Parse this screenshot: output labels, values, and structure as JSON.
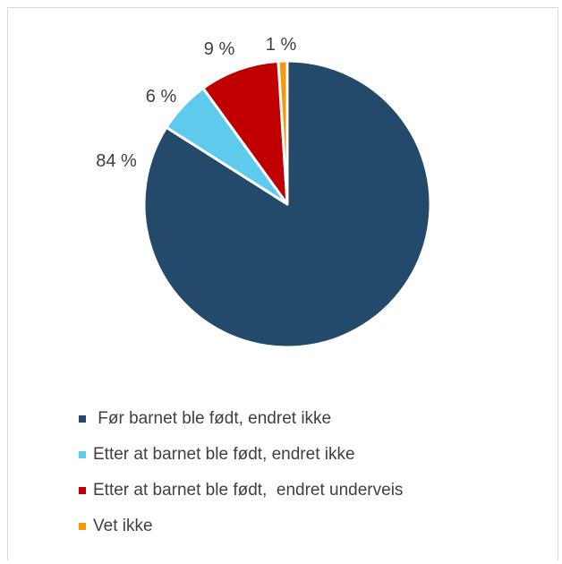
{
  "chart_data": {
    "type": "pie",
    "slices": [
      {
        "label": " Før barnet ble født, endret ikke",
        "value": 84,
        "value_label": "84 %",
        "color": "#244a6b"
      },
      {
        "label": "Etter at barnet ble født, endret ikke",
        "value": 6,
        "value_label": "6 %",
        "color": "#5ecbed"
      },
      {
        "label": "Etter at barnet ble født,  endret underveis",
        "value": 9,
        "value_label": "9 %",
        "color": "#c00000"
      },
      {
        "label": "Vet ikke",
        "value": 1,
        "value_label": "1 %",
        "color": "#f59a0c"
      }
    ],
    "start": "12 o'clock",
    "direction": "clockwise",
    "legend_position": "bottom"
  }
}
